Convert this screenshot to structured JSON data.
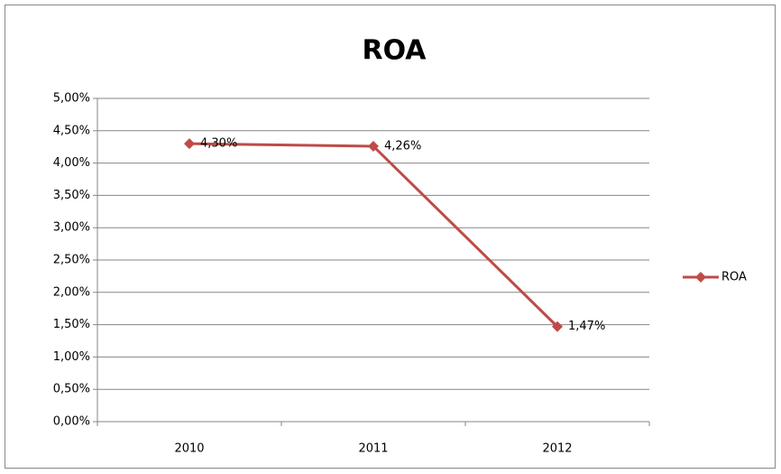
{
  "chart_data": {
    "type": "line",
    "title": "ROA",
    "categories": [
      "2010",
      "2011",
      "2012"
    ],
    "series": [
      {
        "name": "ROA",
        "color": "#be4b48",
        "values": [
          4.3,
          4.26,
          1.47
        ],
        "value_labels": [
          "4,30%",
          "4,26%",
          "1,47%"
        ]
      }
    ],
    "ylim": [
      0,
      5
    ],
    "yticks": [
      {
        "value": 0,
        "label": "0,00%"
      },
      {
        "value": 0.5,
        "label": "0,50%"
      },
      {
        "value": 1,
        "label": "1,00%"
      },
      {
        "value": 1.5,
        "label": "1,50%"
      },
      {
        "value": 2,
        "label": "2,00%"
      },
      {
        "value": 2.5,
        "label": "2,50%"
      },
      {
        "value": 3,
        "label": "3,00%"
      },
      {
        "value": 3.5,
        "label": "3,50%"
      },
      {
        "value": 4,
        "label": "4,00%"
      },
      {
        "value": 4.5,
        "label": "4,50%"
      },
      {
        "value": 5,
        "label": "5,00%"
      }
    ],
    "grid": true,
    "legend": "right"
  }
}
